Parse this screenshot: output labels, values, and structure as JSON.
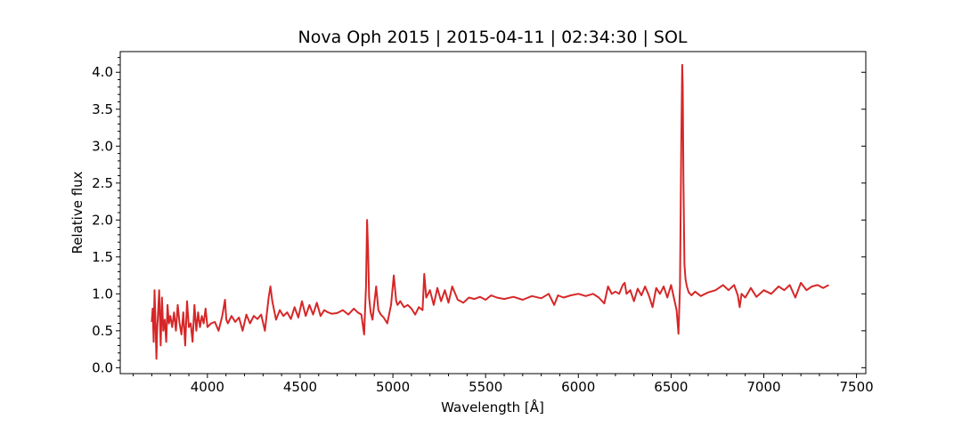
{
  "chart_data": {
    "type": "line",
    "title": "Nova Oph 2015 | 2015-04-11 | 02:34:30 | SOL",
    "xlabel": "Wavelength [Å]",
    "ylabel": "Relative flux",
    "xlim": [
      3530,
      7550
    ],
    "ylim": [
      -0.08,
      4.28
    ],
    "grid": false,
    "xticks": [
      "4000",
      "4500",
      "5000",
      "5500",
      "6000",
      "6500",
      "7000",
      "7500"
    ],
    "yticks": [
      "0.0",
      "0.5",
      "1.0",
      "1.5",
      "2.0",
      "2.5",
      "3.0",
      "3.5",
      "4.0"
    ],
    "series": [
      {
        "color": "#d62728",
        "x": [
          3700,
          3705,
          3710,
          3715,
          3720,
          3725,
          3730,
          3735,
          3740,
          3748,
          3755,
          3762,
          3770,
          3778,
          3785,
          3792,
          3800,
          3810,
          3820,
          3830,
          3840,
          3850,
          3860,
          3870,
          3880,
          3890,
          3900,
          3910,
          3920,
          3930,
          3940,
          3950,
          3960,
          3970,
          3980,
          3990,
          4000,
          4020,
          4040,
          4060,
          4080,
          4095,
          4102,
          4110,
          4130,
          4150,
          4170,
          4190,
          4210,
          4230,
          4250,
          4270,
          4290,
          4310,
          4330,
          4340,
          4350,
          4370,
          4390,
          4410,
          4430,
          4450,
          4470,
          4490,
          4510,
          4530,
          4550,
          4570,
          4590,
          4610,
          4630,
          4650,
          4670,
          4700,
          4730,
          4760,
          4790,
          4810,
          4830,
          4845,
          4855,
          4861,
          4866,
          4872,
          4880,
          4890,
          4910,
          4922,
          4935,
          4950,
          4970,
          4990,
          5005,
          5018,
          5025,
          5040,
          5060,
          5080,
          5100,
          5120,
          5140,
          5160,
          5169,
          5180,
          5200,
          5220,
          5240,
          5260,
          5280,
          5300,
          5320,
          5350,
          5380,
          5410,
          5440,
          5470,
          5500,
          5530,
          5560,
          5600,
          5650,
          5700,
          5750,
          5800,
          5840,
          5870,
          5890,
          5920,
          5960,
          6000,
          6040,
          6080,
          6110,
          6140,
          6160,
          6180,
          6200,
          6220,
          6240,
          6250,
          6260,
          6280,
          6300,
          6320,
          6340,
          6360,
          6380,
          6400,
          6420,
          6440,
          6460,
          6480,
          6500,
          6515,
          6530,
          6540,
          6548,
          6555,
          6560,
          6563,
          6567,
          6572,
          6578,
          6585,
          6595,
          6610,
          6630,
          6660,
          6700,
          6740,
          6780,
          6810,
          6840,
          6860,
          6870,
          6880,
          6900,
          6930,
          6960,
          7000,
          7040,
          7080,
          7110,
          7140,
          7170,
          7200,
          7230,
          7260,
          7290,
          7320,
          7350
        ],
        "values": [
          0.62,
          0.8,
          0.35,
          1.05,
          0.6,
          0.12,
          0.55,
          0.8,
          1.05,
          0.3,
          0.95,
          0.5,
          0.65,
          0.35,
          0.85,
          0.6,
          0.7,
          0.55,
          0.75,
          0.5,
          0.85,
          0.6,
          0.45,
          0.75,
          0.3,
          0.9,
          0.55,
          0.6,
          0.35,
          0.85,
          0.5,
          0.75,
          0.55,
          0.7,
          0.6,
          0.8,
          0.55,
          0.6,
          0.62,
          0.5,
          0.7,
          0.92,
          0.65,
          0.6,
          0.7,
          0.62,
          0.68,
          0.5,
          0.72,
          0.6,
          0.7,
          0.66,
          0.72,
          0.5,
          0.95,
          1.1,
          0.9,
          0.65,
          0.78,
          0.7,
          0.75,
          0.66,
          0.82,
          0.68,
          0.9,
          0.7,
          0.85,
          0.72,
          0.88,
          0.7,
          0.78,
          0.75,
          0.73,
          0.74,
          0.78,
          0.72,
          0.8,
          0.75,
          0.72,
          0.45,
          1.1,
          2.0,
          1.6,
          0.95,
          0.75,
          0.65,
          1.1,
          0.78,
          0.72,
          0.68,
          0.6,
          0.85,
          1.25,
          0.9,
          0.85,
          0.9,
          0.82,
          0.85,
          0.8,
          0.72,
          0.82,
          0.78,
          1.27,
          0.95,
          1.05,
          0.85,
          1.08,
          0.9,
          1.05,
          0.88,
          1.1,
          0.92,
          0.88,
          0.95,
          0.93,
          0.96,
          0.92,
          0.98,
          0.95,
          0.93,
          0.96,
          0.92,
          0.97,
          0.94,
          1.0,
          0.85,
          0.98,
          0.95,
          0.98,
          1.0,
          0.97,
          1.0,
          0.95,
          0.87,
          1.1,
          1.0,
          1.03,
          1.0,
          1.12,
          1.15,
          1.0,
          1.05,
          0.9,
          1.07,
          0.98,
          1.1,
          0.98,
          0.82,
          1.08,
          1.0,
          1.1,
          0.95,
          1.12,
          0.95,
          0.78,
          0.46,
          1.1,
          3.0,
          4.1,
          3.8,
          2.5,
          1.4,
          1.2,
          1.1,
          1.02,
          0.98,
          1.03,
          0.97,
          1.02,
          1.05,
          1.12,
          1.05,
          1.12,
          0.98,
          0.82,
          1.0,
          0.95,
          1.08,
          0.96,
          1.05,
          1.0,
          1.1,
          1.05,
          1.12,
          0.95,
          1.15,
          1.05,
          1.1,
          1.12,
          1.08,
          1.12
        ]
      }
    ]
  }
}
